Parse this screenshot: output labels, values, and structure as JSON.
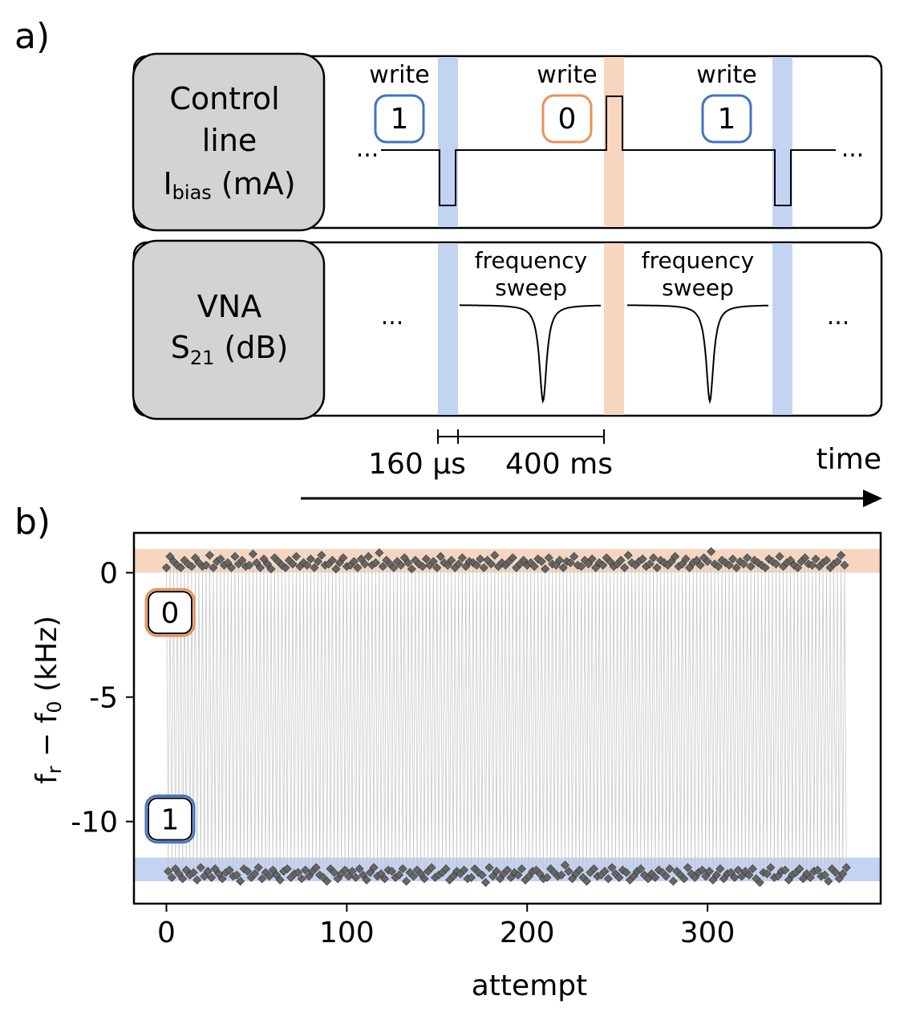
{
  "panel_a": {
    "label": "a)",
    "control_box": {
      "line1": "Control",
      "line2": "line",
      "ibias_I": "I",
      "ibias_sub": "bias",
      "ibias_unit": " (mA)"
    },
    "vna_box": {
      "line1": "VNA",
      "s_main": "S",
      "s_sub": "21",
      "s_unit": " (dB)"
    },
    "write_events": [
      {
        "label": "write",
        "bit": "1",
        "accent": "#4472c4",
        "band": "#c3d3f2"
      },
      {
        "label": "write",
        "bit": "0",
        "accent": "#e8925a",
        "band": "#f6d6bf"
      },
      {
        "label": "write",
        "bit": "1",
        "accent": "#4472c4",
        "band": "#c3d3f2"
      }
    ],
    "sweep_label_line1": "frequency",
    "sweep_label_line2": "sweep",
    "ellipsis": "...",
    "timing_short": "160 µs",
    "timing_long": "400 ms",
    "time_label": "time"
  },
  "chart_data": {
    "type": "scatter",
    "panel_label": "b)",
    "xlabel": "attempt",
    "ylabel_main": "f",
    "ylabel_sub_r": "r",
    "ylabel_mid": " − f",
    "ylabel_sub_0": "0",
    "ylabel_unit": " (kHz)",
    "xlim": [
      -18,
      396
    ],
    "ylim": [
      -13.3,
      1.6
    ],
    "xticks": [
      0,
      100,
      200,
      300
    ],
    "xtick_labels": [
      "0",
      "100",
      "200",
      "300"
    ],
    "yticks": [
      0,
      -5,
      -10
    ],
    "ytick_labels": [
      "0",
      "-5",
      "-10"
    ],
    "state_bands": [
      {
        "state": "0",
        "y_range": [
          0,
          0.95
        ],
        "color": "#f6d6bf"
      },
      {
        "state": "1",
        "y_range": [
          -12.4,
          -11.45
        ],
        "color": "#c3d3f2"
      }
    ],
    "state_labels": [
      {
        "text": "0",
        "y": -1.6,
        "accent": "#e8925a"
      },
      {
        "text": "1",
        "y": -9.9,
        "accent": "#4472c4"
      }
    ],
    "marker_color": "#666666",
    "attempts": 378,
    "state0_values": [
      0.2,
      0.65,
      0.45,
      0.3,
      0.2,
      0.5,
      0.35,
      0.25,
      0.6,
      0.4,
      0.25,
      0.3,
      0.7,
      0.2,
      0.45,
      0.55,
      0.3,
      0.4,
      0.2,
      0.65,
      0.35,
      0.5,
      0.25,
      0.3,
      0.75,
      0.4,
      0.2,
      0.55,
      0.35,
      0.15,
      0.6,
      0.45,
      0.3,
      0.2,
      0.5,
      0.35,
      0.65,
      0.25,
      0.4,
      0.3,
      0.55,
      0.2,
      0.45,
      0.7,
      0.3,
      0.35,
      0.5,
      0.15,
      0.4,
      0.6,
      0.25,
      0.3,
      0.45,
      0.2,
      0.55,
      0.35,
      0.65,
      0.3,
      0.4,
      0.8,
      0.25,
      0.5,
      0.35,
      0.2,
      0.45,
      0.3,
      0.6,
      0.4,
      0.15,
      0.5,
      0.35,
      0.25,
      0.55,
      0.3,
      0.45,
      0.2,
      0.65,
      0.4,
      0.3,
      0.5,
      0.2,
      0.35,
      0.6,
      0.25,
      0.45,
      0.4,
      0.3,
      0.55,
      0.2,
      0.5,
      0.35,
      0.7,
      0.25,
      0.4,
      0.3,
      0.45,
      0.6,
      0.2,
      0.35,
      0.5,
      0.3,
      0.4,
      0.25,
      0.55,
      0.45,
      0.15,
      0.6,
      0.35,
      0.3,
      0.5,
      0.2,
      0.45,
      0.4,
      0.65,
      0.3,
      0.25,
      0.5,
      0.35,
      0.55,
      0.2,
      0.4,
      0.3,
      0.6,
      0.45,
      0.25,
      0.35,
      0.5,
      0.2,
      0.7,
      0.4,
      0.3,
      0.45,
      0.55,
      0.25,
      0.35,
      0.6,
      0.2,
      0.5,
      0.4,
      0.3,
      0.45,
      0.65,
      0.25,
      0.35,
      0.55,
      0.2,
      0.4,
      0.5,
      0.3,
      0.6,
      0.45,
      0.85,
      0.35,
      0.25,
      0.5,
      0.4,
      0.3,
      0.55,
      0.2,
      0.45,
      0.35,
      0.6,
      0.25,
      0.5,
      0.4,
      0.3,
      0.2,
      0.55,
      0.45,
      0.35,
      0.65,
      0.25,
      0.4,
      0.5,
      0.3,
      0.2,
      0.45,
      0.6,
      0.35,
      0.3,
      0.55,
      0.25,
      0.4,
      0.5,
      0.2,
      0.35,
      0.45,
      0.7,
      0.3,
      0.25,
      0.55,
      0.4,
      0.35,
      0.5,
      0.2,
      0.6,
      0.45,
      0.3,
      0.4,
      0.25,
      0.55,
      0.35,
      0.5,
      0.2,
      0.45,
      0.65,
      0.3,
      0.4,
      0.25,
      0.5,
      0.35,
      0.55,
      0.3,
      0.2,
      0.45,
      0.6,
      0.4,
      0.35,
      0.25,
      0.5,
      0.3,
      0.55,
      0.45,
      0.2,
      0.4,
      0.35,
      0.6,
      0.3,
      0.5,
      0.25,
      0.45,
      0.4,
      0.7,
      0.35,
      0.2,
      0.55,
      0.3,
      0.45,
      0.5,
      0.25,
      0.4,
      0.6,
      0.35,
      0.3,
      0.2,
      0.55,
      0.45,
      0.4,
      0.3,
      0.5,
      0.25,
      0.65,
      0.35,
      0.45,
      0.2,
      0.4,
      0.55,
      0.3,
      0.5,
      0.35,
      0.25,
      0.6,
      0.45,
      0.3,
      0.4,
      0.2,
      0.5,
      0.35,
      0.55,
      0.9,
      0.3,
      0.45,
      0.25,
      0.4,
      0.6,
      0.35,
      0.5,
      0.2,
      0.45,
      0.3,
      0.55,
      0.4,
      0.25,
      0.35,
      0.5,
      0.65,
      0.3,
      0.45,
      0.2,
      0.4,
      0.55,
      0.35,
      0.3,
      0.5,
      0.25,
      0.45,
      0.6,
      0.4,
      0.35,
      0.2,
      0.5,
      0.3,
      0.55,
      0.45,
      0.25,
      0.4,
      0.35,
      0.6,
      0.3,
      0.5,
      0.2,
      0.45,
      0.4,
      0.55,
      0.35,
      0.25,
      0.3,
      0.5,
      0.45,
      0.65,
      0.2,
      0.4,
      0.35,
      0.55,
      0.3,
      0.25,
      0.5,
      0.45,
      0.4,
      0.6,
      0.35,
      0.2,
      0.3,
      0.55,
      0.45,
      0.25,
      0.4,
      0.5,
      0.35,
      0.3,
      0.2,
      0.45,
      0.55,
      0.4,
      0.6,
      0.25,
      0.35,
      0.5
    ],
    "state1_values": [
      -12.0,
      -12.25,
      -11.9,
      -12.1,
      -12.3,
      -11.95,
      -12.15,
      -12.05,
      -12.35,
      -11.85,
      -12.2,
      -12.0,
      -12.25,
      -11.9,
      -12.1,
      -12.3,
      -12.05,
      -11.95,
      -12.2,
      -12.15,
      -12.4,
      -11.9,
      -12.0,
      -12.25,
      -12.1,
      -11.85,
      -12.3,
      -12.05,
      -12.2,
      -11.95,
      -12.15,
      -12.35,
      -12.0,
      -11.9,
      -12.25,
      -12.1,
      -12.05,
      -12.3,
      -11.95,
      -12.2,
      -12.0,
      -11.85,
      -12.15,
      -12.25,
      -12.4,
      -11.9,
      -12.05,
      -12.3,
      -12.1,
      -11.95,
      -12.2,
      -12.0,
      -12.25,
      -11.9,
      -12.15,
      -12.35,
      -12.05,
      -11.85,
      -12.2,
      -12.1,
      -12.3,
      -11.95,
      -12.0,
      -12.25,
      -12.15,
      -11.9,
      -12.4,
      -12.05,
      -12.2,
      -11.95,
      -12.1,
      -12.3,
      -12.0,
      -11.85,
      -12.25,
      -12.15,
      -12.05,
      -11.9,
      -12.35,
      -12.2,
      -12.0,
      -12.1,
      -11.95,
      -12.3,
      -12.25,
      -11.9,
      -12.05,
      -12.15,
      -12.45,
      -11.85,
      -12.2,
      -12.0,
      -12.3,
      -12.1,
      -11.95,
      -12.25,
      -12.05,
      -12.15,
      -11.9,
      -12.35,
      -12.2,
      -12.0,
      -11.95,
      -12.1,
      -12.3,
      -12.25,
      -11.9,
      -12.05,
      -12.2,
      -12.15,
      -11.75,
      -12.0,
      -12.3,
      -12.1,
      -11.95,
      -12.25,
      -12.4,
      -12.05,
      -11.9,
      -12.2,
      -12.15,
      -12.0,
      -12.3,
      -11.85,
      -12.1,
      -12.25,
      -11.95,
      -12.05,
      -12.35,
      -12.2,
      -12.0,
      -11.9,
      -12.15,
      -12.3,
      -12.1,
      -12.25,
      -11.95,
      -12.05,
      -12.2,
      -11.9,
      -12.4,
      -12.0,
      -12.15,
      -12.3,
      -11.85,
      -12.1,
      -12.25,
      -12.05,
      -11.95,
      -12.2,
      -12.0,
      -12.35,
      -12.15,
      -11.9,
      -12.3,
      -12.1,
      -12.05,
      -12.25,
      -11.95,
      -12.2,
      -12.0,
      -12.15,
      -11.9,
      -12.3,
      -12.45,
      -12.05,
      -12.1,
      -11.85,
      -12.25,
      -12.2,
      -12.0,
      -11.95,
      -12.35,
      -12.15,
      -12.05,
      -11.9,
      -12.3,
      -12.1,
      -12.25,
      -12.0,
      -11.95,
      -12.2,
      -12.15,
      -12.4,
      -11.9,
      -12.05,
      -12.3,
      -12.1,
      -11.85,
      -12.25,
      -12.0,
      -12.2,
      -11.95,
      -12.15,
      -12.35,
      -12.05,
      -11.9,
      -12.3,
      -12.1,
      -12.25,
      -12.0,
      -11.75,
      -12.2,
      -12.15,
      -11.95,
      -12.05,
      -12.3,
      -11.9,
      -12.4,
      -12.1,
      -12.25,
      -12.0,
      -11.85,
      -12.2,
      -12.15,
      -12.05,
      -11.95,
      -12.35,
      -12.3,
      -12.1,
      -11.9,
      -12.25,
      -12.0,
      -12.2,
      -12.15,
      -11.95,
      -12.05,
      -12.3,
      -11.9,
      -12.1,
      -12.45,
      -12.25,
      -12.0,
      -11.85,
      -12.2,
      -12.15,
      -12.05,
      -12.35,
      -11.95,
      -12.3,
      -12.1,
      -11.9,
      -12.25,
      -12.0,
      -12.2,
      -12.15,
      -12.05,
      -11.95,
      -12.4,
      -12.3,
      -12.1,
      -11.9,
      -12.25,
      -12.0,
      -11.85,
      -12.2,
      -12.15,
      -12.05,
      -12.35,
      -11.95,
      -12.3,
      -12.1,
      -11.9,
      -12.25,
      -12.0,
      -12.2,
      -11.8,
      -12.15,
      -12.05,
      -12.3,
      -11.95,
      -12.4,
      -12.1,
      -12.25,
      -11.9,
      -12.0,
      -12.2,
      -12.15,
      -12.05,
      -11.85,
      -12.35,
      -12.3,
      -12.1,
      -11.95,
      -12.25,
      -12.0,
      -12.2,
      -11.9,
      -12.15,
      -12.05,
      -12.3,
      -12.1,
      -11.95,
      -12.25,
      -12.4,
      -12.0,
      -11.9,
      -12.2,
      -12.15,
      -12.05,
      -12.35,
      -11.85,
      -12.3,
      -12.1,
      -12.25,
      -11.95,
      -12.0,
      -12.2,
      -12.15,
      -11.9,
      -12.05,
      -12.3,
      -12.45,
      -12.1,
      -11.95,
      -12.25,
      -12.0,
      -12.2,
      -11.85,
      -12.15,
      -12.05,
      -12.35,
      -12.3,
      -11.9,
      -12.1,
      -12.25,
      -12.0,
      -11.95,
      -12.2,
      -12.15,
      -12.05,
      -12.4,
      -11.9,
      -12.3,
      -12.1,
      -12.25,
      -12.0,
      -11.85,
      -12.2,
      -12.15,
      -12.05,
      -12.35,
      -11.95,
      -12.3,
      -12.1,
      -11.9,
      -12.25,
      -12.0
    ]
  }
}
